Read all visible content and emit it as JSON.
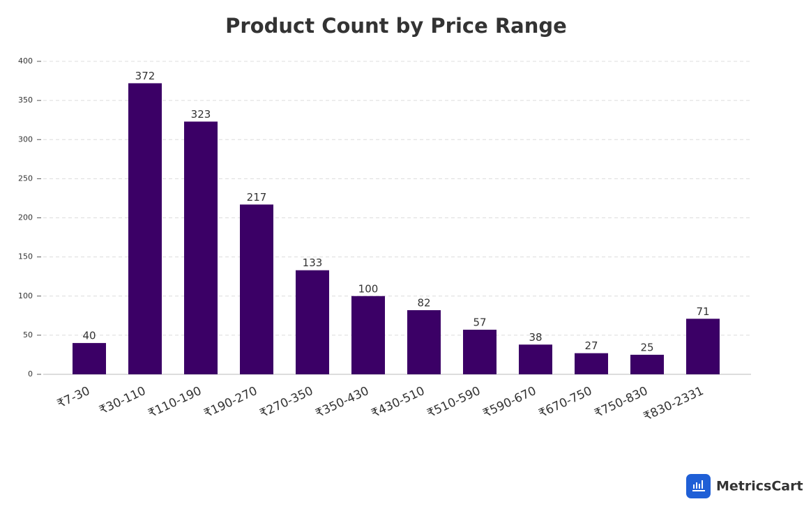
{
  "chart_data": {
    "type": "bar",
    "title": "Product Count by Price Range",
    "categories": [
      "₹7-30",
      "₹30-110",
      "₹110-190",
      "₹190-270",
      "₹270-350",
      "₹350-430",
      "₹430-510",
      "₹510-590",
      "₹590-670",
      "₹670-750",
      "₹750-830",
      "₹830-2331"
    ],
    "values": [
      40,
      372,
      323,
      217,
      133,
      100,
      82,
      57,
      38,
      27,
      25,
      71
    ],
    "color": "#3b0066",
    "ylim": [
      0,
      400
    ],
    "yticks": [
      0,
      50,
      100,
      150,
      200,
      250,
      300,
      350,
      400
    ],
    "grid": true,
    "brand": "MetricsCart"
  }
}
